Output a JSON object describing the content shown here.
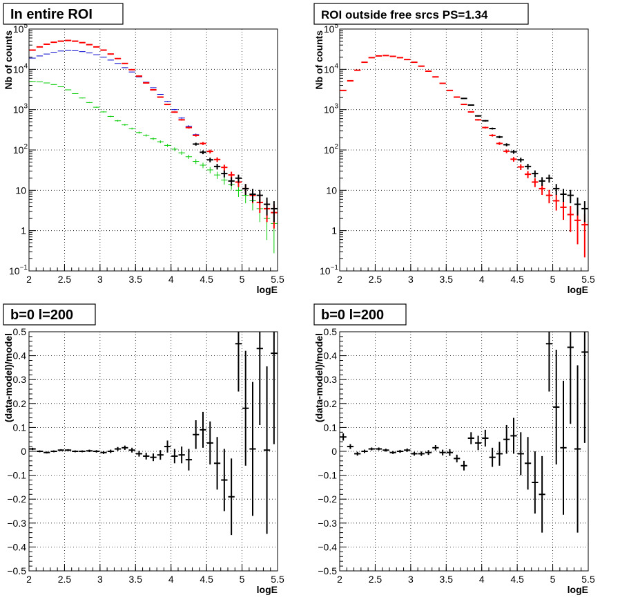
{
  "chart_data": [
    {
      "type": "scatter",
      "title": "In entire ROI",
      "xlabel": "logE",
      "ylabel": "Nb of counts",
      "xlim": [
        2,
        5.5
      ],
      "ylim": [
        0.1,
        100000
      ],
      "yscale": "log",
      "grid": true,
      "x_ticks": [
        "2",
        "2.5",
        "3",
        "3.5",
        "4",
        "4.5",
        "5",
        "5.5"
      ],
      "y_ticks": [
        {
          "base": "10",
          "exp": "−1",
          "value": 0.1
        },
        {
          "base": "1",
          "exp": "",
          "value": 1
        },
        {
          "base": "10",
          "exp": "",
          "value": 10
        },
        {
          "base": "10",
          "exp": "2",
          "value": 100
        },
        {
          "base": "10",
          "exp": "3",
          "value": 1000
        },
        {
          "base": "10",
          "exp": "4",
          "value": 10000
        },
        {
          "base": "10",
          "exp": "5",
          "value": 100000
        }
      ],
      "series": [
        {
          "color": "#0000cc",
          "x": [
            2.05,
            2.15,
            2.25,
            2.35,
            2.45,
            2.55,
            2.65,
            2.75,
            2.85,
            2.95,
            3.05,
            3.15,
            3.25,
            3.35,
            3.45,
            3.55,
            3.65,
            3.75,
            3.85,
            3.95,
            4.05,
            4.15,
            4.25,
            4.35
          ],
          "y": [
            19000,
            21500,
            24000,
            26500,
            28500,
            29500,
            29000,
            27500,
            25500,
            23000,
            20000,
            17000,
            14000,
            11000,
            8600,
            6500,
            4800,
            3500,
            2400,
            1600,
            1000,
            620,
            390,
            240
          ]
        },
        {
          "color": "#00cc00",
          "x": [
            2.05,
            2.15,
            2.25,
            2.35,
            2.45,
            2.55,
            2.65,
            2.75,
            2.85,
            2.95,
            3.05,
            3.15,
            3.25,
            3.35,
            3.45,
            3.55,
            3.65,
            3.75,
            3.85,
            3.95,
            4.05,
            4.15,
            4.25,
            4.35,
            4.45,
            4.55,
            4.65,
            4.75,
            4.85,
            4.95,
            5.05,
            5.15,
            5.25,
            5.35,
            5.45
          ],
          "y": [
            5000,
            4900,
            4600,
            4200,
            3700,
            3100,
            2500,
            1950,
            1500,
            1150,
            880,
            680,
            530,
            420,
            340,
            270,
            230,
            190,
            160,
            130,
            105,
            85,
            68,
            52,
            42,
            32,
            24,
            18,
            14,
            10,
            7.5,
            5.5,
            3.5,
            2.0,
            1.5
          ]
        },
        {
          "color": "#ff0000",
          "x": [
            2.05,
            2.15,
            2.25,
            2.35,
            2.45,
            2.55,
            2.65,
            2.75,
            2.85,
            2.95,
            3.05,
            3.15,
            3.25,
            3.35,
            3.45,
            3.55,
            3.65,
            3.75,
            3.85,
            3.95,
            4.05,
            4.15,
            4.25,
            4.35,
            4.45,
            4.55,
            4.65,
            4.75,
            4.85,
            4.95,
            5.05,
            5.15,
            5.25,
            5.35,
            5.45
          ],
          "y": [
            30000,
            36000,
            42000,
            47000,
            50000,
            52000,
            50000,
            46000,
            41000,
            36000,
            30000,
            24000,
            18500,
            14000,
            9800,
            6800,
            4600,
            3100,
            2050,
            1350,
            870,
            560,
            360,
            230,
            145,
            92,
            58,
            37,
            24,
            16,
            11,
            7.5,
            5,
            3.5,
            2.8
          ]
        },
        {
          "color": "#000000",
          "x": [
            4.35,
            4.45,
            4.55,
            4.65,
            4.75,
            4.85,
            4.95,
            5.05,
            5.15,
            5.25,
            5.35,
            5.45
          ],
          "y": [
            140,
            88,
            57,
            39,
            26,
            17,
            20,
            11,
            8,
            7.5,
            4.5,
            3.5
          ]
        }
      ]
    },
    {
      "type": "scatter",
      "title": "ROI outside free srcs PS=1.34",
      "xlabel": "logE",
      "ylabel": "Nb of counts",
      "xlim": [
        2,
        5.5
      ],
      "ylim": [
        0.1,
        100000
      ],
      "yscale": "log",
      "grid": true,
      "series": [
        {
          "color": "#ff0000",
          "x": [
            2.05,
            2.15,
            2.25,
            2.35,
            2.45,
            2.55,
            2.65,
            2.75,
            2.85,
            2.95,
            3.05,
            3.15,
            3.25,
            3.35,
            3.45,
            3.55,
            3.65,
            3.75,
            3.85,
            3.95,
            4.05,
            4.15,
            4.25,
            4.35,
            4.45,
            4.55,
            4.65,
            4.75,
            4.85,
            4.95,
            5.05,
            5.15,
            5.25,
            5.35,
            5.45
          ],
          "y": [
            3000,
            5200,
            9500,
            15000,
            19500,
            21500,
            22000,
            21000,
            19500,
            17500,
            15000,
            12000,
            9000,
            6500,
            4500,
            3000,
            2050,
            1350,
            880,
            560,
            360,
            230,
            145,
            93,
            59,
            38,
            25,
            16,
            11,
            7.5,
            5.5,
            3.8,
            2.5,
            1.8,
            1.4
          ]
        },
        {
          "color": "#000000",
          "x": [
            3.75,
            3.85,
            3.95,
            4.05,
            4.15,
            4.25,
            4.35,
            4.45,
            4.55,
            4.65,
            4.75,
            4.85,
            4.95,
            5.05,
            5.15,
            5.25,
            5.35,
            5.45
          ],
          "y": [
            1900,
            1300,
            700,
            530,
            340,
            210,
            135,
            90,
            57,
            39,
            26,
            17,
            20,
            11,
            8,
            7.5,
            4.5,
            3.5
          ]
        }
      ]
    },
    {
      "type": "scatter",
      "title": "b=0 l=200",
      "xlabel": "logE",
      "ylabel": "(data-model)/model",
      "xlim": [
        2,
        5.5
      ],
      "ylim": [
        -0.5,
        0.5
      ],
      "grid": true,
      "y_ticks": [
        "−0.5",
        "−0.4",
        "−0.3",
        "−0.2",
        "−0.1",
        "0",
        "0.1",
        "0.2",
        "0.3",
        "0.4",
        "0.5"
      ],
      "series": [
        {
          "color": "#000000",
          "x": [
            2.05,
            2.15,
            2.25,
            2.35,
            2.45,
            2.55,
            2.65,
            2.75,
            2.85,
            2.95,
            3.05,
            3.15,
            3.25,
            3.35,
            3.45,
            3.55,
            3.65,
            3.75,
            3.85,
            3.95,
            4.05,
            4.15,
            4.25,
            4.35,
            4.45,
            4.55,
            4.65,
            4.75,
            4.85,
            4.95,
            5.05,
            5.15,
            5.25,
            5.35,
            5.45
          ],
          "y": [
            0.01,
            0.0,
            -0.005,
            0.0,
            0.005,
            0.005,
            0.0,
            0.0,
            0.002,
            0.0,
            -0.005,
            0.0,
            0.01,
            0.015,
            0.005,
            -0.01,
            -0.02,
            -0.025,
            -0.015,
            0.02,
            -0.02,
            -0.015,
            -0.035,
            0.07,
            0.09,
            0.035,
            -0.05,
            -0.12,
            -0.19,
            0.45,
            0.18,
            0.01,
            0.43,
            0.005,
            0.41
          ],
          "err": [
            0.005,
            0.004,
            0.004,
            0.004,
            0.004,
            0.004,
            0.004,
            0.004,
            0.005,
            0.005,
            0.006,
            0.007,
            0.008,
            0.009,
            0.01,
            0.012,
            0.014,
            0.016,
            0.02,
            0.025,
            0.03,
            0.035,
            0.045,
            0.06,
            0.075,
            0.09,
            0.11,
            0.13,
            0.16,
            0.2,
            0.24,
            0.28,
            0.32,
            0.35,
            0.38
          ]
        }
      ]
    },
    {
      "type": "scatter",
      "title": "b=0 l=200",
      "xlabel": "logE",
      "ylabel": "(data-model)/model",
      "xlim": [
        2,
        5.5
      ],
      "ylim": [
        -0.5,
        0.5
      ],
      "grid": true,
      "series": [
        {
          "color": "#000000",
          "x": [
            2.05,
            2.15,
            2.25,
            2.35,
            2.45,
            2.55,
            2.65,
            2.75,
            2.85,
            2.95,
            3.05,
            3.15,
            3.25,
            3.35,
            3.45,
            3.55,
            3.65,
            3.75,
            3.85,
            3.95,
            4.05,
            4.15,
            4.25,
            4.35,
            4.45,
            4.55,
            4.65,
            4.75,
            4.85,
            4.95,
            5.05,
            5.15,
            5.25,
            5.35,
            5.45
          ],
          "y": [
            0.06,
            0.02,
            -0.01,
            0.0,
            0.01,
            0.01,
            0.005,
            -0.005,
            0.0,
            0.005,
            -0.01,
            -0.01,
            -0.005,
            0.015,
            -0.005,
            -0.005,
            -0.03,
            -0.06,
            0.055,
            0.035,
            0.055,
            -0.025,
            -0.01,
            0.05,
            0.065,
            -0.01,
            -0.05,
            -0.13,
            -0.18,
            0.45,
            0.185,
            0.015,
            0.435,
            0.01,
            0.415
          ],
          "err": [
            0.015,
            0.01,
            0.008,
            0.007,
            0.006,
            0.006,
            0.006,
            0.006,
            0.006,
            0.007,
            0.008,
            0.009,
            0.01,
            0.011,
            0.012,
            0.014,
            0.016,
            0.02,
            0.025,
            0.03,
            0.035,
            0.04,
            0.05,
            0.06,
            0.075,
            0.09,
            0.11,
            0.13,
            0.16,
            0.2,
            0.24,
            0.28,
            0.32,
            0.35,
            0.38
          ]
        }
      ]
    }
  ]
}
